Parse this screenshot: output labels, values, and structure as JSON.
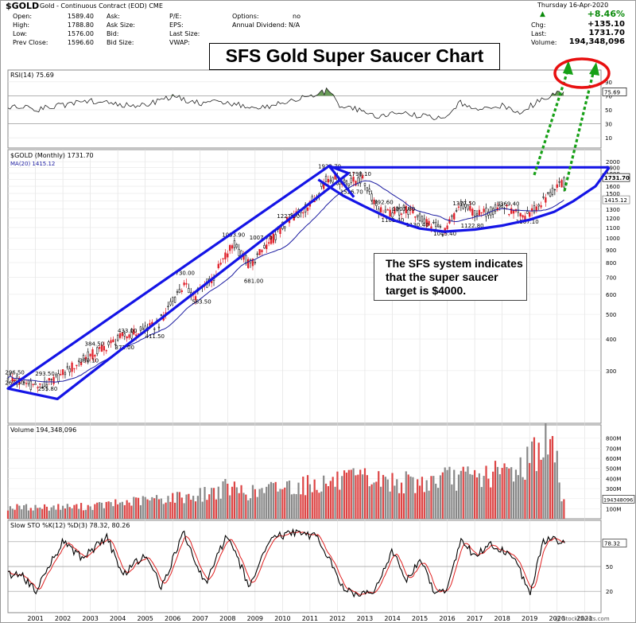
{
  "header": {
    "symbol": "$GOLD",
    "description": "Gold - Continuous Contract (EOD) CME",
    "date": "Thursday 16-Apr-2020",
    "watermark": "@ StockCharts.com",
    "open_label": "Open:",
    "open": "1589.40",
    "high_label": "High:",
    "high": "1788.80",
    "low_label": "Low:",
    "low": "1576.00",
    "prev_label": "Prev Close:",
    "prev": "1596.60",
    "ask_label": "Ask:",
    "asksize_label": "Ask Size:",
    "bid_label": "Bid:",
    "bidsize_label": "Bid Size:",
    "pe_label": "P/E:",
    "eps_label": "EPS:",
    "lastsize_label": "Last Size:",
    "vwap_label": "VWAP:",
    "options_label": "Options:",
    "options": "no",
    "dividend_label": "Annual Dividend:",
    "dividend": "N/A",
    "pct_change": "+8.46%",
    "chg_label": "Chg:",
    "chg": "+135.10",
    "last_label": "Last:",
    "last": "1731.70",
    "volume_label": "Volume:",
    "volume": "194,348,096"
  },
  "title": "SFS Gold Super Saucer Chart",
  "annotation": "The SFS system indicates that the super saucer target is $4000.",
  "colors": {
    "up": "#000000",
    "down": "#e0202a",
    "pattern": "#1414e6",
    "arrow": "#16a016",
    "circle": "#e81010",
    "rsi_fill": "#4e8a3a",
    "ma": "#1a1aa0"
  },
  "chart_data": [
    {
      "type": "line",
      "panel": "rsi",
      "label": "RSI(14) 75.69",
      "current": 75.69,
      "ylim": [
        0,
        100
      ],
      "ticks": [
        90,
        70,
        50,
        30,
        10
      ],
      "levels": [
        70,
        30
      ],
      "x": [
        2000.5,
        2001,
        2002,
        2003,
        2004,
        2005,
        2006,
        2007,
        2008,
        2009,
        2010,
        2011,
        2011.7,
        2012,
        2012.5,
        2013,
        2013.5,
        2014,
        2015,
        2015.9,
        2016.5,
        2017,
        2018,
        2018.7,
        2019,
        2019.6,
        2020.3
      ],
      "values": [
        55,
        50,
        57,
        62,
        58,
        56,
        68,
        60,
        61,
        52,
        60,
        70,
        78,
        58,
        54,
        45,
        38,
        45,
        42,
        38,
        60,
        52,
        56,
        42,
        55,
        68,
        75.69
      ]
    },
    {
      "type": "candlestick",
      "panel": "price",
      "label": "$GOLD (Monthly) 1731.70",
      "ma_label": "MA(20) 1415.12",
      "last": 1731.7,
      "ma_last": 1415.12,
      "scale": "log",
      "ylim": [
        200,
        2200
      ],
      "ticks": [
        2000,
        1900,
        1800,
        1700,
        1600,
        1500,
        1400,
        1300,
        1200,
        1100,
        1000,
        900,
        800,
        700,
        600,
        500,
        400,
        300
      ],
      "x_ticks": [
        "2001",
        "2002",
        "2003",
        "2004",
        "2005",
        "2006",
        "2007",
        "2008",
        "2009",
        "2010",
        "2011",
        "2012",
        "2013",
        "2014",
        "2015",
        "2016",
        "2017",
        "2018",
        "2019",
        "2020",
        "2021"
      ],
      "anchors_x": [
        2000.0,
        2000.5,
        2001.2,
        2001.7,
        2002.5,
        2003.5,
        2004.2,
        2004.9,
        2005.5,
        2006.4,
        2006.8,
        2007.5,
        2008.2,
        2008.8,
        2009.5,
        2010.3,
        2011.0,
        2011.7,
        2012.2,
        2012.9,
        2013.5,
        2013.9,
        2014.5,
        2015.0,
        2015.9,
        2016.5,
        2017.2,
        2018.0,
        2018.7,
        2019.2,
        2019.7,
        2020.0,
        2020.3
      ],
      "anchors_y": [
        285,
        270,
        258,
        275,
        320,
        370,
        410,
        430,
        460,
        650,
        590,
        700,
        950,
        780,
        950,
        1200,
        1350,
        1750,
        1650,
        1700,
        1300,
        1240,
        1300,
        1200,
        1060,
        1330,
        1240,
        1330,
        1210,
        1300,
        1480,
        1560,
        1731.7
      ],
      "labels": [
        {
          "text": "296.50",
          "x": 2000.3,
          "y": 296.5
        },
        {
          "text": "269.50",
          "x": 2000.3,
          "y": 269.5
        },
        {
          "text": "293.50",
          "x": 2001.4,
          "y": 293.5
        },
        {
          "text": "255.80",
          "x": 2001.5,
          "y": 255.8
        },
        {
          "text": "330.10",
          "x": 2003.0,
          "y": 330.1
        },
        {
          "text": "384.50",
          "x": 2003.2,
          "y": 384.5
        },
        {
          "text": "372.00",
          "x": 2004.3,
          "y": 372.0
        },
        {
          "text": "433.00",
          "x": 2004.4,
          "y": 433.0
        },
        {
          "text": "411.50",
          "x": 2005.4,
          "y": 411.5
        },
        {
          "text": "730.00",
          "x": 2006.5,
          "y": 730.0
        },
        {
          "text": "563.50",
          "x": 2007.1,
          "y": 563.5
        },
        {
          "text": "1033.90",
          "x": 2008.2,
          "y": 1033.9
        },
        {
          "text": "681.00",
          "x": 2009.0,
          "y": 681.0
        },
        {
          "text": "1007.70",
          "x": 2009.2,
          "y": 1007.7
        },
        {
          "text": "1227.50",
          "x": 2010.2,
          "y": 1227.5
        },
        {
          "text": "1923.70",
          "x": 2011.7,
          "y": 1923.7
        },
        {
          "text": "1798.10",
          "x": 2012.8,
          "y": 1798.1
        },
        {
          "text": "1526.70",
          "x": 2012.5,
          "y": 1526.7
        },
        {
          "text": "1392.60",
          "x": 2013.6,
          "y": 1392.6
        },
        {
          "text": "1307.80",
          "x": 2014.4,
          "y": 1307.8
        },
        {
          "text": "1181.40",
          "x": 2014.0,
          "y": 1181.4
        },
        {
          "text": "1130.40",
          "x": 2014.9,
          "y": 1130.4
        },
        {
          "text": "1377.50",
          "x": 2016.6,
          "y": 1377.5
        },
        {
          "text": "1045.40",
          "x": 2015.9,
          "y": 1045.4
        },
        {
          "text": "1122.80",
          "x": 2016.9,
          "y": 1122.8
        },
        {
          "text": "1369.40",
          "x": 2018.2,
          "y": 1369.4
        },
        {
          "text": "1167.10",
          "x": 2018.9,
          "y": 1167.1
        }
      ]
    },
    {
      "type": "bar",
      "panel": "volume",
      "label": "Volume 194,348,096",
      "last": "194348096",
      "ylim": [
        0,
        900
      ],
      "ticks": [
        "800M",
        "700M",
        "600M",
        "500M",
        "400M",
        "300M",
        "200M",
        "100M"
      ],
      "x": [
        2001,
        2003,
        2005,
        2007,
        2008,
        2009,
        2010,
        2011,
        2012,
        2013,
        2014,
        2015,
        2016,
        2017,
        2018,
        2018.8,
        2019,
        2019.5,
        2019.9,
        2020.2
      ],
      "values": [
        130,
        140,
        210,
        270,
        350,
        290,
        370,
        390,
        420,
        450,
        420,
        400,
        460,
        470,
        520,
        600,
        720,
        850,
        800,
        194
      ]
    },
    {
      "type": "line",
      "panel": "stochastic",
      "label": "Slow STO %K(12) %D(3) 78.32, 80.26",
      "k_last": 78.32,
      "d_last": 80.26,
      "ylim": [
        0,
        100
      ],
      "ticks": [
        80,
        50,
        20
      ],
      "x": [
        2000.5,
        2001,
        2002,
        2002.7,
        2003.6,
        2004.2,
        2005,
        2005.6,
        2006.4,
        2007.2,
        2008,
        2008.8,
        2009.6,
        2010.4,
        2011.3,
        2012.3,
        2013.3,
        2014,
        2014.5,
        2015,
        2015.5,
        2016,
        2016.5,
        2017,
        2017.5,
        2018,
        2018.5,
        2019,
        2019.5,
        2019.8,
        2020.1,
        2020.3
      ],
      "values": [
        40,
        20,
        80,
        60,
        85,
        40,
        65,
        25,
        90,
        30,
        90,
        25,
        85,
        90,
        85,
        20,
        15,
        70,
        30,
        60,
        20,
        20,
        85,
        60,
        80,
        70,
        60,
        15,
        80,
        85,
        80,
        78.32
      ]
    }
  ]
}
